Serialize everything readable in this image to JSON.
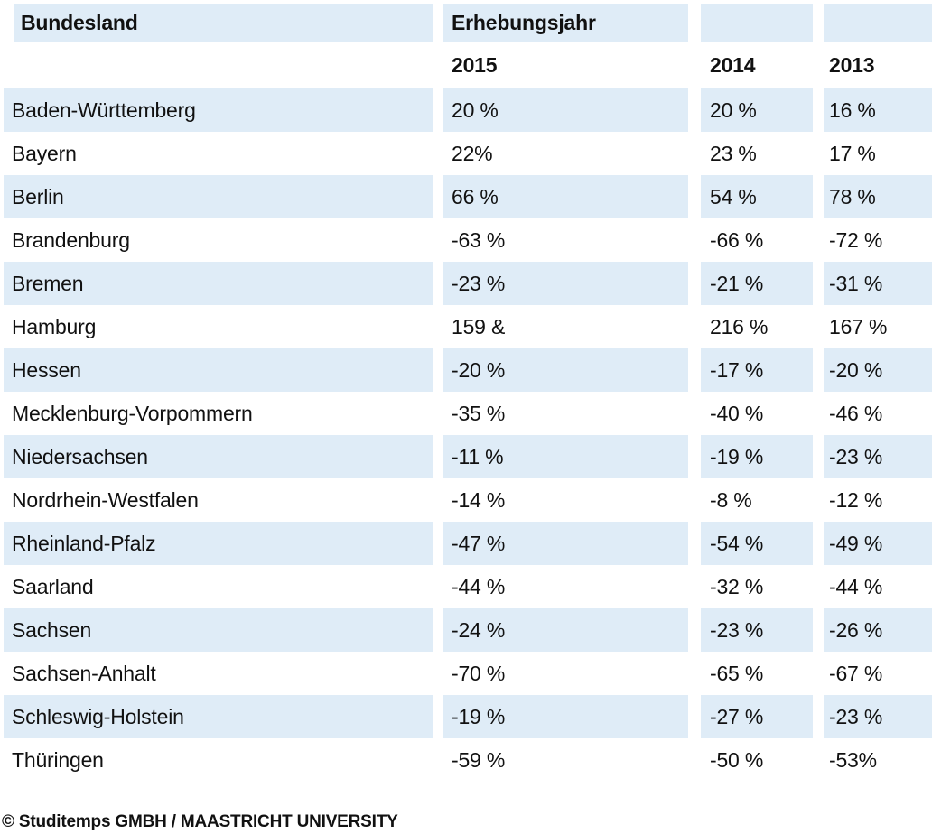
{
  "table": {
    "header": {
      "col1": "Bundesland",
      "col2": "Erhebungsjahr"
    },
    "years": [
      "2015",
      "2014",
      "2013"
    ],
    "rows": [
      {
        "state": "Baden-Württemberg",
        "v2015": "20 %",
        "v2014": "20 %",
        "v2013": "16 %"
      },
      {
        "state": "Bayern",
        "v2015": "22%",
        "v2014": "23 %",
        "v2013": "17 %"
      },
      {
        "state": "Berlin",
        "v2015": "66 %",
        "v2014": "54 %",
        "v2013": "78 %"
      },
      {
        "state": "Brandenburg",
        "v2015": "-63 %",
        "v2014": "-66 %",
        "v2013": "-72 %"
      },
      {
        "state": "Bremen",
        "v2015": "-23 %",
        "v2014": "-21 %",
        "v2013": "-31 %"
      },
      {
        "state": "Hamburg",
        "v2015": "159 &",
        "v2014": "216 %",
        "v2013": "167 %"
      },
      {
        "state": "Hessen",
        "v2015": "-20 %",
        "v2014": "-17 %",
        "v2013": "-20 %"
      },
      {
        "state": "Mecklenburg-Vorpommern",
        "v2015": "-35 %",
        "v2014": "-40 %",
        "v2013": "-46 %"
      },
      {
        "state": "Niedersachsen",
        "v2015": "-11 %",
        "v2014": "-19 %",
        "v2013": "-23 %"
      },
      {
        "state": "Nordrhein-Westfalen",
        "v2015": "-14 %",
        "v2014": "-8 %",
        "v2013": "-12 %"
      },
      {
        "state": "Rheinland-Pfalz",
        "v2015": "-47 %",
        "v2014": "-54 %",
        "v2013": "-49 %"
      },
      {
        "state": "Saarland",
        "v2015": "-44 %",
        "v2014": "-32 %",
        "v2013": "-44 %"
      },
      {
        "state": "Sachsen",
        "v2015": "-24 %",
        "v2014": "-23 %",
        "v2013": "-26 %"
      },
      {
        "state": "Sachsen-Anhalt",
        "v2015": "-70 %",
        "v2014": "-65 %",
        "v2013": "-67 %"
      },
      {
        "state": "Schleswig-Holstein",
        "v2015": "-19 %",
        "v2014": "-27 %",
        "v2013": "-23 %"
      },
      {
        "state": "Thüringen",
        "v2015": "-59 %",
        "v2014": "-50 %",
        "v2013": "-53%"
      }
    ],
    "footer": "© Studitemps GMBH / MAASTRICHT UNIVERSITY",
    "colors": {
      "row_alt": "#dfecf7",
      "text": "#111111"
    }
  },
  "chart_data": {
    "type": "table",
    "title": "Erhebungsjahr",
    "row_header_label": "Bundesland",
    "categories": [
      "Baden-Württemberg",
      "Bayern",
      "Berlin",
      "Brandenburg",
      "Bremen",
      "Hamburg",
      "Hessen",
      "Mecklenburg-Vorpommern",
      "Niedersachsen",
      "Nordrhein-Westfalen",
      "Rheinland-Pfalz",
      "Saarland",
      "Sachsen",
      "Sachsen-Anhalt",
      "Schleswig-Holstein",
      "Thüringen"
    ],
    "series": [
      {
        "name": "2015",
        "unit": "%",
        "values": [
          20,
          22,
          66,
          -63,
          -23,
          159,
          -20,
          -35,
          -11,
          -14,
          -47,
          -44,
          -24,
          -70,
          -19,
          -59
        ]
      },
      {
        "name": "2014",
        "unit": "%",
        "values": [
          20,
          23,
          54,
          -66,
          -21,
          216,
          -17,
          -40,
          -19,
          -8,
          -54,
          -32,
          -23,
          -65,
          -27,
          -50
        ]
      },
      {
        "name": "2013",
        "unit": "%",
        "values": [
          16,
          17,
          78,
          -72,
          -31,
          167,
          -20,
          -46,
          -23,
          -12,
          -49,
          -44,
          -26,
          -67,
          -23,
          -53
        ]
      }
    ],
    "source": "© Studitemps GMBH / MAASTRICHT UNIVERSITY",
    "layout": {
      "striped_rows": true,
      "stripe_color": "#dfecf7",
      "grid": false
    }
  }
}
